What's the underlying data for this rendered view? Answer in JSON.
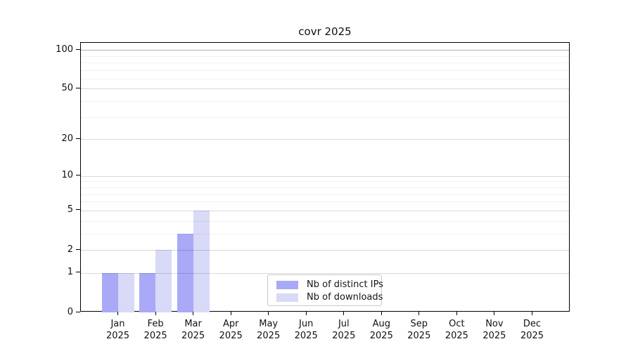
{
  "chart_data": {
    "type": "bar",
    "title": "covr 2025",
    "categories": [
      {
        "label": "Jan",
        "sub": "2025"
      },
      {
        "label": "Feb",
        "sub": "2025"
      },
      {
        "label": "Mar",
        "sub": "2025"
      },
      {
        "label": "Apr",
        "sub": "2025"
      },
      {
        "label": "May",
        "sub": "2025"
      },
      {
        "label": "Jun",
        "sub": "2025"
      },
      {
        "label": "Jul",
        "sub": "2025"
      },
      {
        "label": "Aug",
        "sub": "2025"
      },
      {
        "label": "Sep",
        "sub": "2025"
      },
      {
        "label": "Oct",
        "sub": "2025"
      },
      {
        "label": "Nov",
        "sub": "2025"
      },
      {
        "label": "Dec",
        "sub": "2025"
      }
    ],
    "series": [
      {
        "name": "Nb of distinct IPs",
        "color": "#a9a9f7",
        "values": [
          1,
          1,
          3,
          0,
          0,
          0,
          0,
          0,
          0,
          0,
          0,
          0
        ]
      },
      {
        "name": "Nb of downloads",
        "color": "#d9d9f8",
        "values": [
          1,
          2,
          5,
          0,
          0,
          0,
          0,
          0,
          0,
          0,
          0,
          0
        ]
      }
    ],
    "y_scale": "log1p",
    "ylim": [
      0,
      113.3
    ],
    "y_ticks": [
      0,
      1,
      2,
      5,
      10,
      20,
      50,
      100
    ],
    "y_minor_ticks": [
      3,
      4,
      6,
      7,
      8,
      9,
      30,
      40,
      60,
      70,
      80,
      90
    ],
    "grid": {
      "major_color": "rgba(0,0,0,0.15)",
      "minor_color": "rgba(0,0,0,0.055)",
      "top_color": "rgba(0,0,0,0.30)",
      "top_value": 100
    },
    "xlabel": "",
    "ylabel": "",
    "legend_position": "lower center"
  }
}
